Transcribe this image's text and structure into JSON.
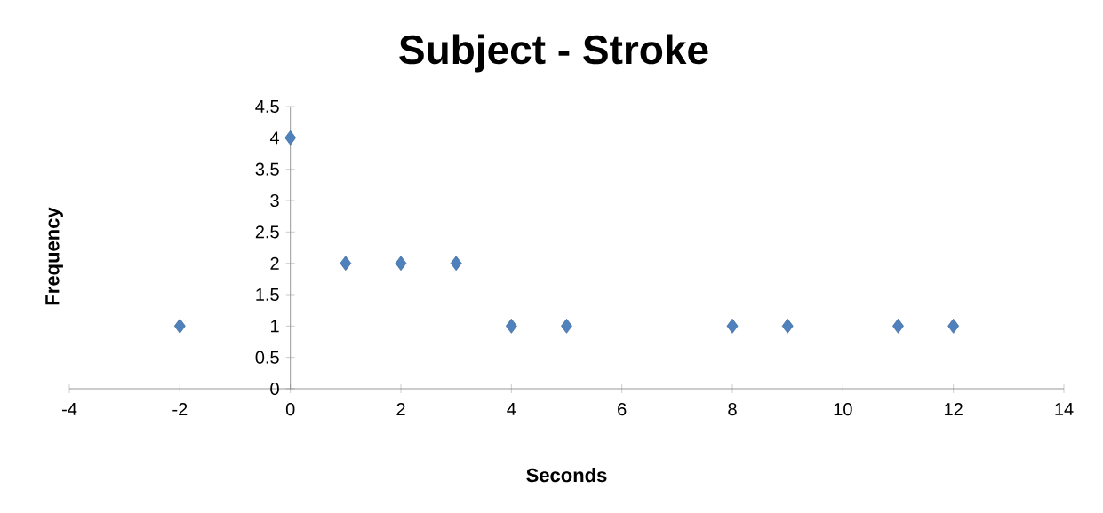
{
  "chart_data": {
    "type": "scatter",
    "title": "Subject - Stroke",
    "xlabel": "Seconds",
    "ylabel": "Frequency",
    "x": [
      -2,
      0,
      1,
      2,
      3,
      4,
      5,
      8,
      9,
      11,
      12
    ],
    "values": [
      1,
      4,
      2,
      2,
      2,
      1,
      1,
      1,
      1,
      1,
      1
    ],
    "color": "#4f81bd",
    "marker": "diamond",
    "xlim": [
      -4,
      14
    ],
    "xticks": [
      -4,
      -2,
      0,
      2,
      4,
      6,
      8,
      10,
      12,
      14
    ],
    "ylim": [
      0,
      4.5
    ],
    "yticks": [
      0,
      0.5,
      1,
      1.5,
      2,
      2.5,
      3,
      3.5,
      4,
      4.5
    ]
  }
}
